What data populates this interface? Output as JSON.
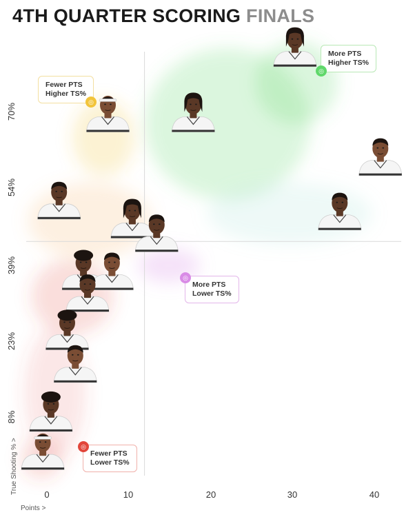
{
  "title": {
    "main": "4TH QUARTER SCORING",
    "accent": "FINALS"
  },
  "colors": {
    "more_higher": "#5fd86a",
    "fewer_higher": "#f2c43a",
    "more_lower": "#d98be6",
    "fewer_lower": "#e2463b",
    "jersey": "#f5f5f5",
    "skin_dark": "#5a3826",
    "skin_mid": "#7a4d34",
    "hair": "#1c1410"
  },
  "quadrants": {
    "more_higher": {
      "line1": "More PTS",
      "line2": "Higher TS%",
      "icon": "basketball-icon"
    },
    "fewer_higher": {
      "line1": "Fewer PTS",
      "line2": "Higher TS%",
      "icon": "basketball-icon"
    },
    "more_lower": {
      "line1": "More PTS",
      "line2": "Lower TS%",
      "icon": "basketball-icon"
    },
    "fewer_lower": {
      "line1": "Fewer PTS",
      "line2": "Lower TS%",
      "icon": "basketball-icon"
    }
  },
  "chart_data": {
    "type": "scatter",
    "xlabel": "Points >",
    "ylabel": "True Shooting % >",
    "x_ticks": [
      "0",
      "10",
      "20",
      "30",
      "40"
    ],
    "y_ticks": [
      "8%",
      "23%",
      "39%",
      "54%",
      "70%"
    ],
    "xlim": [
      -3,
      44
    ],
    "ylim": [
      -3,
      80
    ],
    "reference_lines": {
      "x": 12,
      "y": 42
    },
    "points": [
      {
        "x": 30.5,
        "y": 76,
        "skin": "dark",
        "hair": "locs"
      },
      {
        "x": 7.5,
        "y": 64,
        "skin": "mid",
        "hair": "headband"
      },
      {
        "x": 18,
        "y": 64,
        "skin": "dark",
        "hair": "locs"
      },
      {
        "x": 41,
        "y": 56,
        "skin": "mid",
        "hair": "short"
      },
      {
        "x": 1.5,
        "y": 48,
        "skin": "dark",
        "hair": "short"
      },
      {
        "x": 36,
        "y": 46,
        "skin": "dark",
        "hair": "short"
      },
      {
        "x": 10.5,
        "y": 44.5,
        "skin": "dark",
        "hair": "locs"
      },
      {
        "x": 13.5,
        "y": 42,
        "skin": "dark",
        "hair": "short"
      },
      {
        "x": 4.5,
        "y": 35,
        "skin": "dark",
        "hair": "curly"
      },
      {
        "x": 8,
        "y": 35,
        "skin": "mid",
        "hair": "short"
      },
      {
        "x": 5,
        "y": 31,
        "skin": "dark",
        "hair": "short"
      },
      {
        "x": 2.5,
        "y": 24,
        "skin": "dark",
        "hair": "curly"
      },
      {
        "x": 3.5,
        "y": 18,
        "skin": "mid",
        "hair": "short"
      },
      {
        "x": 0.5,
        "y": 9,
        "skin": "dark",
        "hair": "curly"
      },
      {
        "x": -0.5,
        "y": 2,
        "skin": "mid",
        "hair": "headband"
      }
    ]
  }
}
